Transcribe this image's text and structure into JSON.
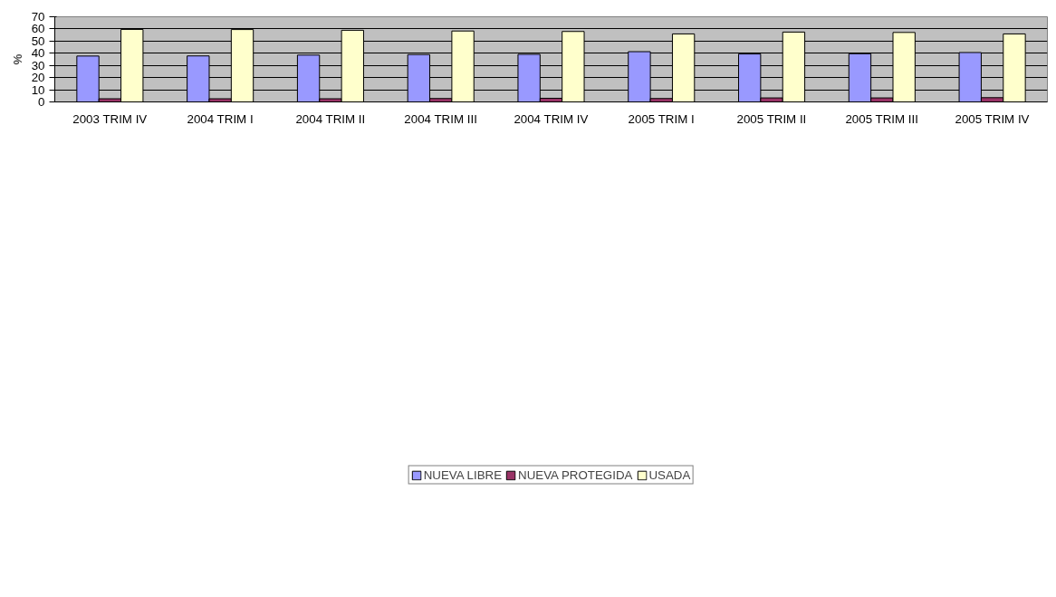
{
  "chart_data": {
    "type": "bar",
    "ylabel": "%",
    "categories": [
      "2003 TRIM IV",
      "2004 TRIM I",
      "2004 TRIM II",
      "2004 TRIM III",
      "2004 TRIM IV",
      "2005 TRIM I",
      "2005 TRIM II",
      "2005 TRIM III",
      "2005 TRIM IV"
    ],
    "series": [
      {
        "name": "NUEVA LIBRE",
        "color": "#9999ff",
        "values": [
          37.7,
          37.8,
          38.5,
          38.9,
          39.1,
          41.3,
          39.4,
          39.6,
          40.6
        ]
      },
      {
        "name": "NUEVA PROTEGIDA",
        "color": "#993366",
        "values": [
          2.6,
          2.6,
          2.6,
          2.8,
          3.0,
          2.8,
          3.3,
          3.3,
          3.5
        ]
      },
      {
        "name": "USADA",
        "color": "#ffffcc",
        "values": [
          59.6,
          59.5,
          58.9,
          58.3,
          57.9,
          55.9,
          57.4,
          57.1,
          55.9
        ]
      }
    ],
    "ylim": [
      0,
      70
    ],
    "yticks": [
      0,
      10,
      20,
      30,
      40,
      50,
      60,
      70
    ],
    "grid": "y",
    "legend": "bottom"
  }
}
